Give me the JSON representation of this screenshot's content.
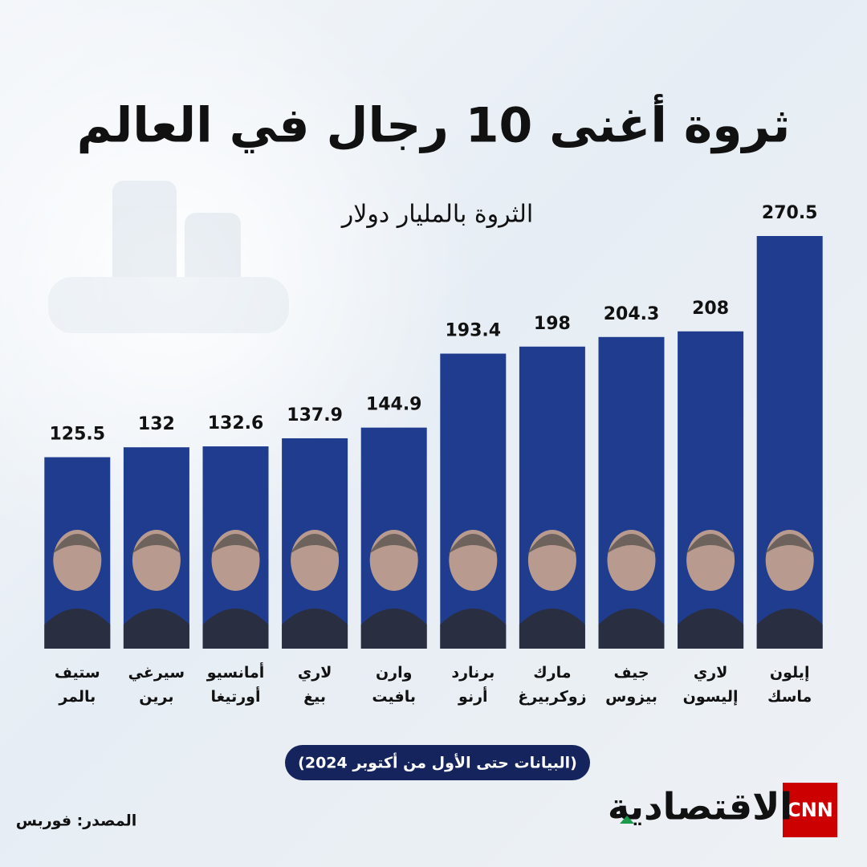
{
  "chart_data": {
    "type": "bar",
    "title": "ثروة أغنى 10 رجال في العالم",
    "subtitle": "الثروة بالمليار دولار",
    "categories": [
      "ستيف بالمر",
      "سيرغي برين",
      "أمانسيو أورتيغا",
      "لاري بيغ",
      "وارن بافيت",
      "برنارد أرنو",
      "مارك زوكربيرغ",
      "جيف بيزوس",
      "لاري إليسون",
      "إيلون ماسك"
    ],
    "values": [
      125.5,
      132,
      132.6,
      137.9,
      144.9,
      193.4,
      198,
      204.3,
      208,
      270.5
    ],
    "color": "#1f3c8f",
    "note": "(البيانات حتى الأول من أكتوبر 2024)",
    "source": "المصدر: فوربس",
    "brand": "الاقتصادية",
    "logo": "CNN"
  }
}
